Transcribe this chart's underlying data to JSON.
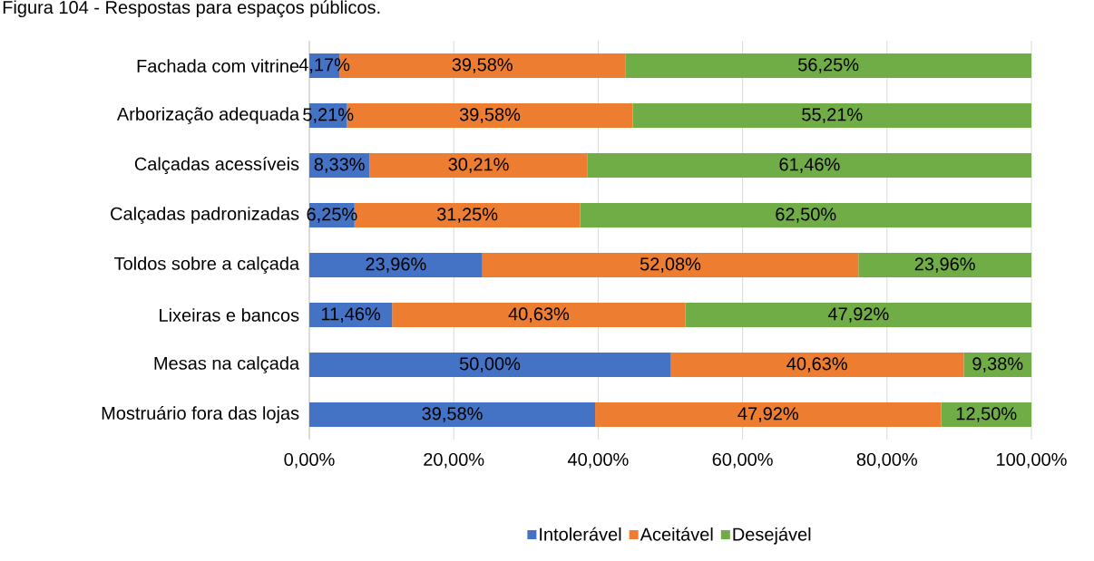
{
  "chart_data": {
    "type": "bar",
    "orientation": "horizontal",
    "stacked": true,
    "title": "Figura 104 - Respostas para espaços públicos.",
    "categories": [
      "Fachada com vitrine",
      "Arborização adequada",
      "Calçadas acessíveis",
      "Calçadas padronizadas",
      "Toldos sobre a calçada",
      "Lixeiras e bancos",
      "Mesas na calçada",
      "Mostruário fora das lojas"
    ],
    "series": [
      {
        "name": "Intolerável",
        "color": "#4472c4",
        "values": [
          4.17,
          5.21,
          8.33,
          6.25,
          23.96,
          11.46,
          50.0,
          39.58
        ],
        "value_labels": [
          "4,17%",
          "5,21%",
          "8,33%",
          "6,25%",
          "23,96%",
          "11,46%",
          "50,00%",
          "39,58%"
        ]
      },
      {
        "name": "Aceitável",
        "color": "#ed7d31",
        "values": [
          39.58,
          39.58,
          30.21,
          31.25,
          52.08,
          40.63,
          40.63,
          47.92
        ],
        "value_labels": [
          "39,58%",
          "39,58%",
          "30,21%",
          "31,25%",
          "52,08%",
          "40,63%",
          "40,63%",
          "47,92%"
        ]
      },
      {
        "name": "Desejável",
        "color": "#70ad47",
        "values": [
          56.25,
          55.21,
          61.46,
          62.5,
          23.96,
          47.92,
          9.38,
          12.5
        ],
        "value_labels": [
          "56,25%",
          "55,21%",
          "61,46%",
          "62,50%",
          "23,96%",
          "47,92%",
          "9,38%",
          "12,50%"
        ]
      }
    ],
    "xlim": [
      0,
      100
    ],
    "xticks": [
      {
        "value": 0,
        "label": "0,00%"
      },
      {
        "value": 20,
        "label": "20,00%"
      },
      {
        "value": 40,
        "label": "40,00%"
      },
      {
        "value": 60,
        "label": "60,00%"
      },
      {
        "value": 80,
        "label": "80,00%"
      },
      {
        "value": 100,
        "label": "100,00%"
      }
    ],
    "grid": "x",
    "legend": "bottom"
  }
}
